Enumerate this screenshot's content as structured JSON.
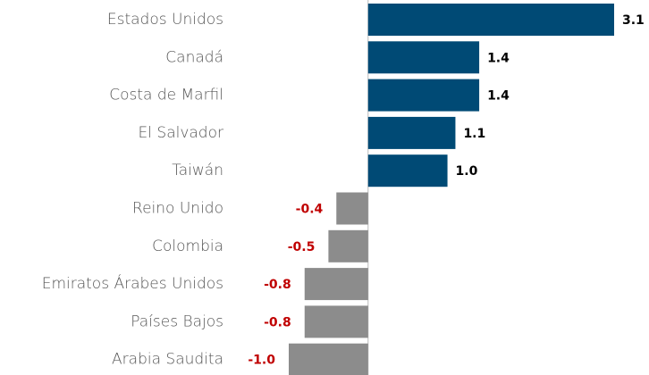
{
  "chart_data": {
    "type": "barh",
    "categories": [
      "Estados Unidos",
      "Canadá",
      "Costa de Marfil",
      "El Salvador",
      "Taiwán",
      "Reino Unido",
      "Colombia",
      "Emiratos Árabes Unidos",
      "Países Bajos",
      "Arabia Saudita"
    ],
    "values": [
      3.1,
      1.4,
      1.4,
      1.1,
      1.0,
      -0.4,
      -0.5,
      -0.8,
      -0.8,
      -1.0
    ],
    "value_labels": [
      "3.1",
      "1.4",
      "1.4",
      "1.1",
      "1.0",
      "-0.4",
      "-0.5",
      "-0.8",
      "-0.8",
      "-1.0"
    ],
    "xlim": [
      -1.0,
      3.1
    ],
    "color": "#004a75",
    "negative_color": "#8c8c8c",
    "label_color": "#000000",
    "negative_label_color": "#c00000"
  }
}
